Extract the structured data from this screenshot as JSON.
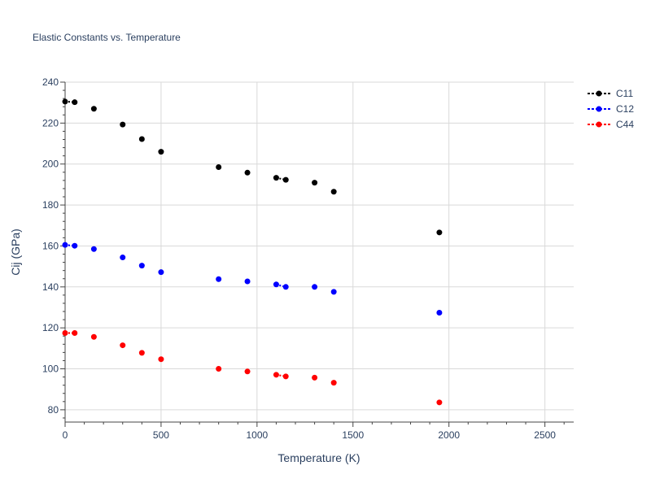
{
  "chart_data": {
    "type": "scatter",
    "title": "Elastic Constants vs. Temperature",
    "xlabel": "Temperature (K)",
    "ylabel": "Cij (GPa)",
    "xlim": [
      0,
      2650
    ],
    "ylim": [
      74,
      240
    ],
    "x_ticks": [
      0,
      500,
      1000,
      1500,
      2000,
      2500
    ],
    "y_ticks": [
      80,
      100,
      120,
      140,
      160,
      180,
      200,
      220,
      240
    ],
    "grid": true,
    "legend_position": "top-right",
    "series": [
      {
        "name": "C11",
        "color": "#000000",
        "points": [
          [
            0,
            230.5
          ],
          [
            50,
            230.2
          ],
          [
            150,
            227
          ],
          [
            300,
            219.3
          ],
          [
            400,
            212.2
          ],
          [
            500,
            206
          ],
          [
            800,
            198.5
          ],
          [
            950,
            195.8
          ],
          [
            1100,
            193.3
          ],
          [
            1150,
            192.3
          ],
          [
            1300,
            190.9
          ],
          [
            1400,
            186.5
          ],
          [
            1950,
            166.6
          ]
        ]
      },
      {
        "name": "C12",
        "color": "#0000ff",
        "points": [
          [
            0,
            160.5
          ],
          [
            50,
            160.1
          ],
          [
            150,
            158.5
          ],
          [
            300,
            154.4
          ],
          [
            400,
            150.4
          ],
          [
            500,
            147.2
          ],
          [
            800,
            143.8
          ],
          [
            950,
            142.7
          ],
          [
            1100,
            141.2
          ],
          [
            1150,
            140
          ],
          [
            1300,
            140
          ],
          [
            1400,
            137.6
          ],
          [
            1950,
            127.4
          ]
        ]
      },
      {
        "name": "C44",
        "color": "#ff0000",
        "points": [
          [
            0,
            117.5
          ],
          [
            50,
            117.5
          ],
          [
            150,
            115.6
          ],
          [
            300,
            111.5
          ],
          [
            400,
            107.8
          ],
          [
            500,
            104.7
          ],
          [
            800,
            100
          ],
          [
            950,
            98.7
          ],
          [
            1100,
            97.1
          ],
          [
            1150,
            96.3
          ],
          [
            1300,
            95.7
          ],
          [
            1400,
            93.2
          ],
          [
            1950,
            83.6
          ]
        ]
      }
    ]
  }
}
